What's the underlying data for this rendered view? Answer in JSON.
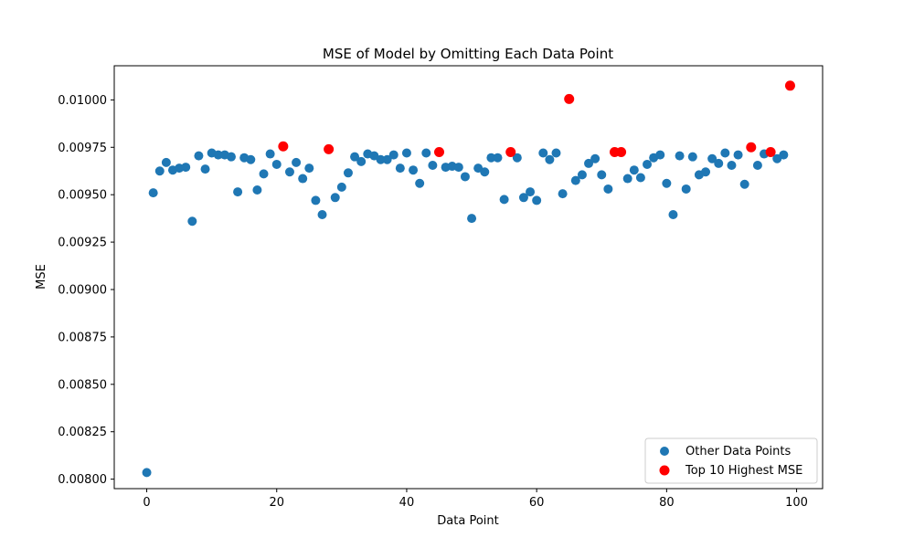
{
  "chart_data": {
    "type": "scatter",
    "title": "MSE of Model by Omitting Each Data Point",
    "xlabel": "Data Point",
    "ylabel": "MSE",
    "xlim": [
      -5,
      104
    ],
    "ylim": [
      0.00795,
      0.01018
    ],
    "xticks": [
      0,
      20,
      40,
      60,
      80,
      100
    ],
    "yticks": [
      0.008,
      0.00825,
      0.0085,
      0.00875,
      0.009,
      0.00925,
      0.0095,
      0.00975,
      0.01
    ],
    "ytick_labels": [
      "0.00800",
      "0.00825",
      "0.00850",
      "0.00875",
      "0.00900",
      "0.00925",
      "0.00950",
      "0.00975",
      "0.01000"
    ],
    "grid": false,
    "legend_position": "lower-right",
    "series": [
      {
        "name": "Other Data Points",
        "color": "#1f77b4",
        "x": [
          0,
          1,
          2,
          3,
          4,
          5,
          6,
          7,
          8,
          9,
          10,
          11,
          12,
          13,
          14,
          15,
          16,
          17,
          18,
          19,
          20,
          22,
          23,
          24,
          25,
          26,
          27,
          29,
          30,
          31,
          32,
          33,
          34,
          35,
          36,
          37,
          38,
          39,
          40,
          41,
          42,
          43,
          44,
          46,
          47,
          48,
          49,
          50,
          51,
          52,
          53,
          54,
          55,
          57,
          58,
          59,
          60,
          61,
          62,
          63,
          64,
          66,
          67,
          68,
          69,
          70,
          71,
          74,
          75,
          76,
          77,
          78,
          79,
          80,
          81,
          82,
          83,
          84,
          85,
          86,
          87,
          88,
          89,
          90,
          91,
          92,
          94,
          95,
          97,
          98
        ],
        "y": [
          0.008035,
          0.00951,
          0.009625,
          0.00967,
          0.00963,
          0.00964,
          0.009645,
          0.00936,
          0.009705,
          0.009635,
          0.00972,
          0.00971,
          0.00971,
          0.0097,
          0.009515,
          0.009695,
          0.009685,
          0.009525,
          0.00961,
          0.009715,
          0.00966,
          0.00962,
          0.00967,
          0.009585,
          0.00964,
          0.00947,
          0.009395,
          0.009485,
          0.00954,
          0.009615,
          0.0097,
          0.009675,
          0.009715,
          0.009705,
          0.009685,
          0.009685,
          0.00971,
          0.00964,
          0.00972,
          0.00963,
          0.00956,
          0.00972,
          0.009655,
          0.009645,
          0.00965,
          0.009645,
          0.009595,
          0.009375,
          0.00964,
          0.00962,
          0.009695,
          0.009695,
          0.009475,
          0.009695,
          0.009485,
          0.009515,
          0.00947,
          0.00972,
          0.009685,
          0.00972,
          0.009505,
          0.009575,
          0.009605,
          0.009665,
          0.00969,
          0.009605,
          0.00953,
          0.009585,
          0.00963,
          0.00959,
          0.00966,
          0.009695,
          0.00971,
          0.00956,
          0.009395,
          0.009705,
          0.00953,
          0.0097,
          0.009605,
          0.00962,
          0.00969,
          0.009665,
          0.00972,
          0.009655,
          0.00971,
          0.009555,
          0.009655,
          0.009715,
          0.00969,
          0.00971
        ]
      },
      {
        "name": "Top 10 Highest MSE",
        "color": "#ff0000",
        "x": [
          21,
          28,
          45,
          56,
          65,
          72,
          73,
          93,
          96,
          99
        ],
        "y": [
          0.009755,
          0.00974,
          0.009725,
          0.009725,
          0.010005,
          0.009725,
          0.009725,
          0.00975,
          0.009725,
          0.010075
        ]
      }
    ]
  }
}
